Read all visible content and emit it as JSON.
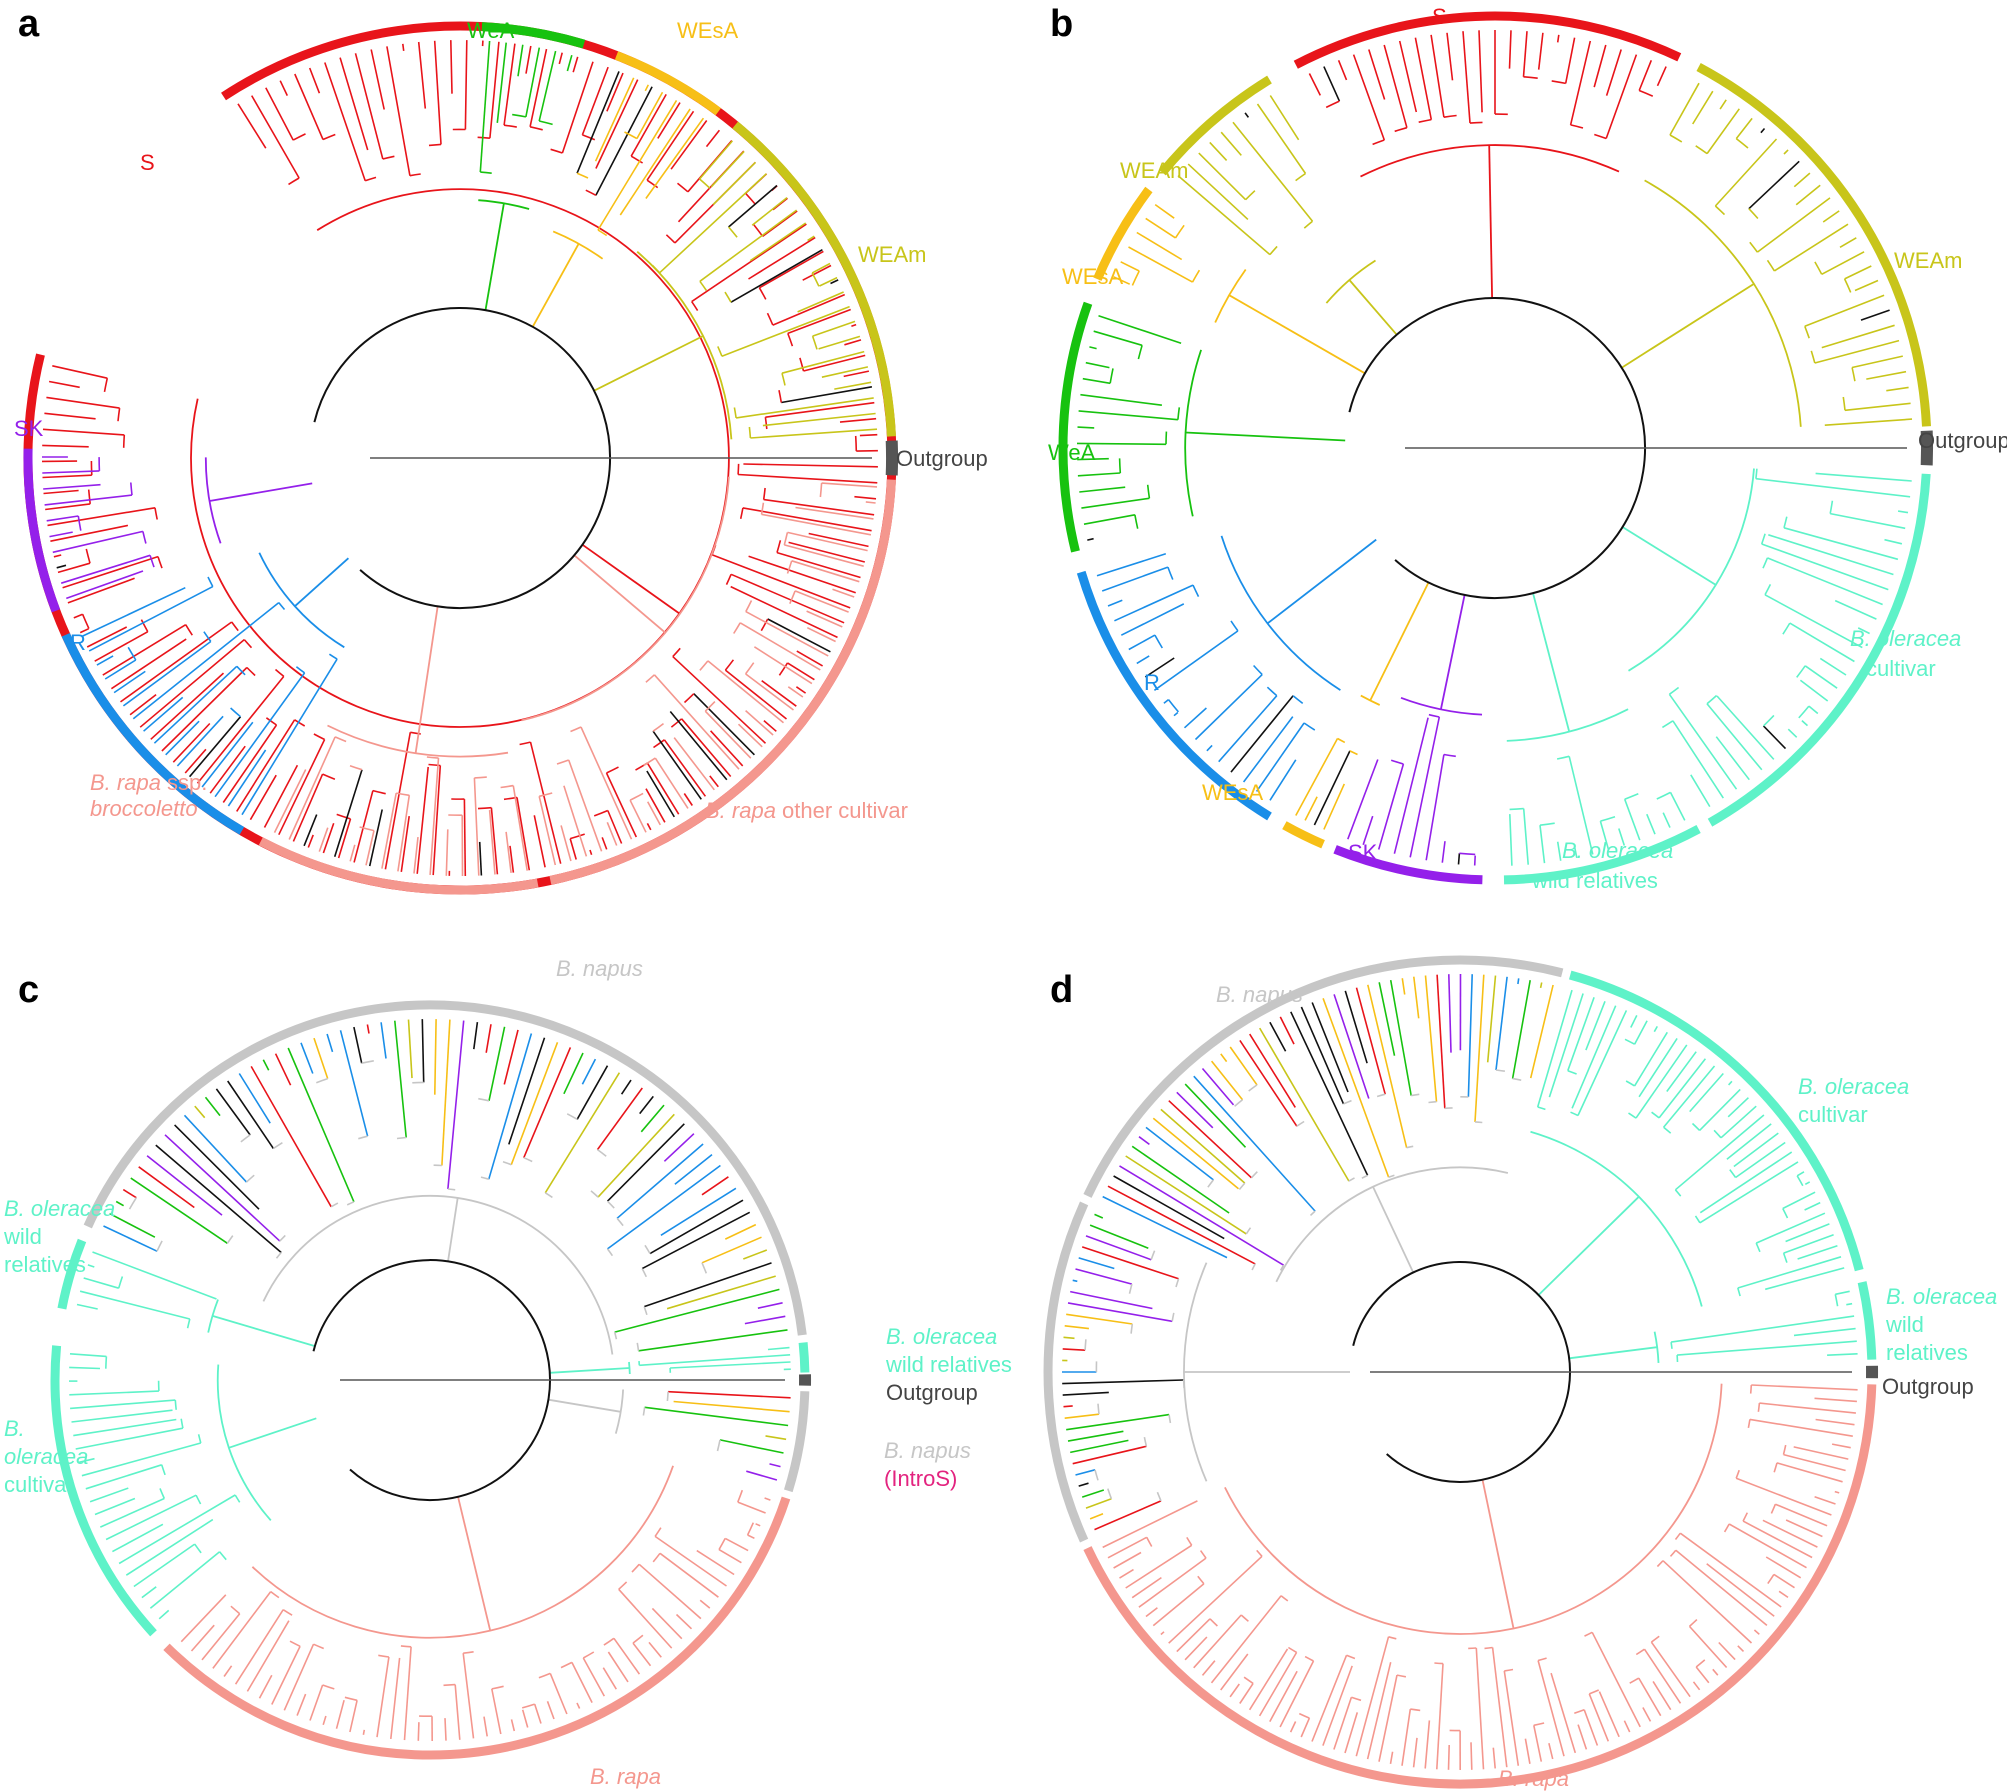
{
  "colors": {
    "S": "#e8141a",
    "WeA": "#17c20f",
    "WEsA": "#f7bf16",
    "WEAm": "#c8c51a",
    "SK": "#9420ea",
    "R": "#1a8ee8",
    "rapa": "#f4978e",
    "oleracea": "#5ef2c8",
    "napus": "#c6c6c6",
    "outgroup": "#555555",
    "introS": "#e3237f",
    "black": "#111111",
    "node": "#8b5a2b"
  },
  "panels": [
    {
      "letter": "a",
      "arcs": [
        {
          "key": "S",
          "a0": 2.15,
          "a1": 2.9
        },
        {
          "key": "WeA",
          "a0": 1.52,
          "a1": 1.28
        },
        {
          "key": "WEsA",
          "a0": 1.2,
          "a1": 0.93
        },
        {
          "key": "WEAm",
          "a0": 0.88,
          "a1": 0.05
        },
        {
          "key": "outgroup",
          "a0": 0.04,
          "a1": -0.04
        },
        {
          "key": "rapa",
          "a0": -0.05,
          "a1": -1.36
        },
        {
          "key": "rapa",
          "a0": -1.39,
          "a1": -2.05
        },
        {
          "key": "R",
          "a0": -2.1,
          "a1": -2.72
        },
        {
          "key": "SK",
          "a0": -2.78,
          "a1": 3.12
        }
      ],
      "labels": {
        "S": "S",
        "WeA": "WeA",
        "WEsA": "WEsA",
        "WEAm": "WEAm",
        "Outgroup": "Outgroup",
        "SK": "SK",
        "R": "R",
        "rapa_italic_1": "B. rapa",
        "rapa_suffix_1": " ssp.",
        "rapa_italic_2": "broccoletto",
        "rapa_other_italic": "B. rapa",
        "rapa_other_suffix": " other cultivar"
      }
    },
    {
      "letter": "b",
      "arcs": [
        {
          "key": "S",
          "a0": 2.05,
          "a1": 1.13
        },
        {
          "key": "WEAm",
          "a0": 1.08,
          "a1": 0.05
        },
        {
          "key": "outgroup",
          "a0": 0.04,
          "a1": -0.04
        },
        {
          "key": "oleracea",
          "a0": -0.06,
          "a1": -1.05
        },
        {
          "key": "oleracea",
          "a0": -1.08,
          "a1": -1.55
        },
        {
          "key": "SK",
          "a0": -1.6,
          "a1": -1.95
        },
        {
          "key": "WEsA",
          "a0": -1.98,
          "a1": -2.08
        },
        {
          "key": "R",
          "a0": -2.12,
          "a1": -2.85
        },
        {
          "key": "WeA",
          "a0": -2.9,
          "a1": 2.8
        },
        {
          "key": "WEsA",
          "a0": 2.74,
          "a1": 2.5
        },
        {
          "key": "WEAm",
          "a0": 2.45,
          "a1": 2.12
        }
      ],
      "labels": {
        "S": "S",
        "WEAm_left": "WEAm",
        "WEAm_right": "WEAm",
        "WEsA_top": "WEsA",
        "WEsA_bottom": "WEsA",
        "WeA": "WeA",
        "R": "R",
        "SK": "SK",
        "Outgroup": "Outgroup",
        "ole_cult_italic": "B. oleracea",
        "ole_cult_suffix": "cultivar",
        "ole_wild_italic": "B. oleracea",
        "ole_wild_suffix": "wild relatives"
      }
    },
    {
      "letter": "c",
      "arcs": [
        {
          "key": "napus",
          "a0": 2.72,
          "a1": 0.12
        },
        {
          "key": "oleracea",
          "a0": 0.1,
          "a1": 0.02
        },
        {
          "key": "outgroup",
          "a0": 0.015,
          "a1": -0.015
        },
        {
          "key": "napus",
          "a0": -0.03,
          "a1": -0.3
        },
        {
          "key": "rapa",
          "a0": -0.32,
          "a1": -2.35
        },
        {
          "key": "oleracea",
          "a0": -2.4,
          "a1": 3.05
        },
        {
          "key": "oleracea",
          "a0": 2.95,
          "a1": 2.76
        }
      ],
      "labels": {
        "napus_top": "B. napus",
        "ole_wild_left_italic": "B. oleracea",
        "ole_wild_left_suffix1": "wild",
        "ole_wild_left_suffix2": "relatives",
        "ole_cult_left_italic1": "B.",
        "ole_cult_left_italic2": "oleracea",
        "ole_cult_left_suffix": "cultivar",
        "ole_wild_right_italic": "B. oleracea",
        "ole_wild_right_suffix": "wild relatives",
        "Outgroup": "Outgroup",
        "napus_right": "B. napus",
        "introS": "(IntroS)",
        "rapa_bottom": "B. rapa"
      }
    },
    {
      "letter": "d",
      "arcs": [
        {
          "key": "napus",
          "a0": 2.7,
          "a1": 1.32
        },
        {
          "key": "oleracea",
          "a0": 1.3,
          "a1": 0.25
        },
        {
          "key": "oleracea",
          "a0": 0.22,
          "a1": 0.03
        },
        {
          "key": "outgroup",
          "a0": 0.015,
          "a1": -0.015
        },
        {
          "key": "rapa",
          "a0": -0.03,
          "a1": -2.7
        },
        {
          "key": "napus",
          "a0": -2.72,
          "a1": 2.72
        }
      ],
      "labels": {
        "napus_top": "B. napus",
        "ole_cult_italic": "B. oleracea",
        "ole_cult_suffix": "cultivar",
        "ole_wild_italic": "B. oleracea",
        "ole_wild_suffix1": "wild",
        "ole_wild_suffix2": "relatives",
        "Outgroup": "Outgroup",
        "rapa_bottom": "B. rapa"
      }
    }
  ]
}
